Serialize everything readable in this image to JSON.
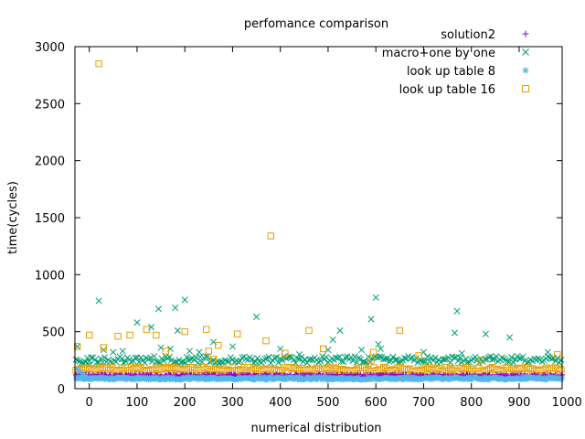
{
  "chart_data": {
    "type": "scatter",
    "title": "perfomance comparison",
    "xlabel": "numerical distribution",
    "ylabel": "time(cycles)",
    "xlim": [
      -30,
      990
    ],
    "ylim": [
      0,
      3000
    ],
    "x_ticks": [
      0,
      100,
      200,
      300,
      400,
      500,
      600,
      700,
      800,
      900,
      1000
    ],
    "y_ticks": [
      0,
      500,
      1000,
      1500,
      2000,
      2500,
      3000
    ],
    "x_tick_labels": [
      "0",
      "100",
      "200",
      "300",
      "400",
      "500",
      "600",
      "700",
      "800",
      "900",
      "1000"
    ],
    "y_tick_labels": [
      "0",
      "500",
      "1000",
      "1500",
      "2000",
      "2500",
      "3000"
    ],
    "legend_position": "top-right",
    "grid": false,
    "series": [
      {
        "name": "solution2",
        "marker": "plus",
        "color": "#9400d3",
        "band": {
          "x_step": 2,
          "base": 110,
          "jitter": 14
        },
        "outliers": []
      },
      {
        "name": "macro+one by one",
        "marker": "x",
        "color": "#009e73",
        "band": {
          "x_step": 4,
          "base": 255,
          "jitter": 30
        },
        "outliers": [
          [
            -25,
            370
          ],
          [
            0,
            210
          ],
          [
            20,
            770
          ],
          [
            30,
            340
          ],
          [
            50,
            320
          ],
          [
            70,
            330
          ],
          [
            100,
            580
          ],
          [
            130,
            540
          ],
          [
            145,
            700
          ],
          [
            150,
            360
          ],
          [
            170,
            350
          ],
          [
            180,
            710
          ],
          [
            185,
            510
          ],
          [
            200,
            780
          ],
          [
            210,
            330
          ],
          [
            230,
            320
          ],
          [
            260,
            410
          ],
          [
            300,
            370
          ],
          [
            350,
            630
          ],
          [
            400,
            350
          ],
          [
            440,
            300
          ],
          [
            500,
            340
          ],
          [
            510,
            430
          ],
          [
            525,
            510
          ],
          [
            570,
            340
          ],
          [
            590,
            610
          ],
          [
            600,
            800
          ],
          [
            605,
            390
          ],
          [
            610,
            350
          ],
          [
            700,
            320
          ],
          [
            765,
            490
          ],
          [
            770,
            680
          ],
          [
            780,
            310
          ],
          [
            830,
            480
          ],
          [
            880,
            450
          ],
          [
            960,
            320
          ]
        ]
      },
      {
        "name": "look up table 8",
        "marker": "star",
        "color": "#56b4e9",
        "band": {
          "x_step": 2,
          "base": 90,
          "jitter": 12
        },
        "outliers": [
          [
            -25,
            170
          ],
          [
            -20,
            150
          ],
          [
            -15,
            130
          ],
          [
            -10,
            120
          ],
          [
            0,
            100
          ],
          [
            20,
            90
          ]
        ]
      },
      {
        "name": "look up table 16",
        "marker": "square",
        "color": "#e69f00",
        "band": {
          "x_step": 4,
          "base": 170,
          "jitter": 18
        },
        "outliers": [
          [
            -25,
            370
          ],
          [
            0,
            470
          ],
          [
            20,
            2850
          ],
          [
            30,
            360
          ],
          [
            60,
            460
          ],
          [
            85,
            470
          ],
          [
            120,
            520
          ],
          [
            140,
            470
          ],
          [
            160,
            330
          ],
          [
            200,
            500
          ],
          [
            245,
            520
          ],
          [
            250,
            330
          ],
          [
            260,
            260
          ],
          [
            270,
            380
          ],
          [
            310,
            480
          ],
          [
            370,
            420
          ],
          [
            380,
            1340
          ],
          [
            410,
            310
          ],
          [
            460,
            510
          ],
          [
            490,
            350
          ],
          [
            590,
            250
          ],
          [
            595,
            320
          ],
          [
            650,
            510
          ],
          [
            690,
            290
          ],
          [
            820,
            250
          ],
          [
            980,
            300
          ]
        ]
      }
    ]
  }
}
